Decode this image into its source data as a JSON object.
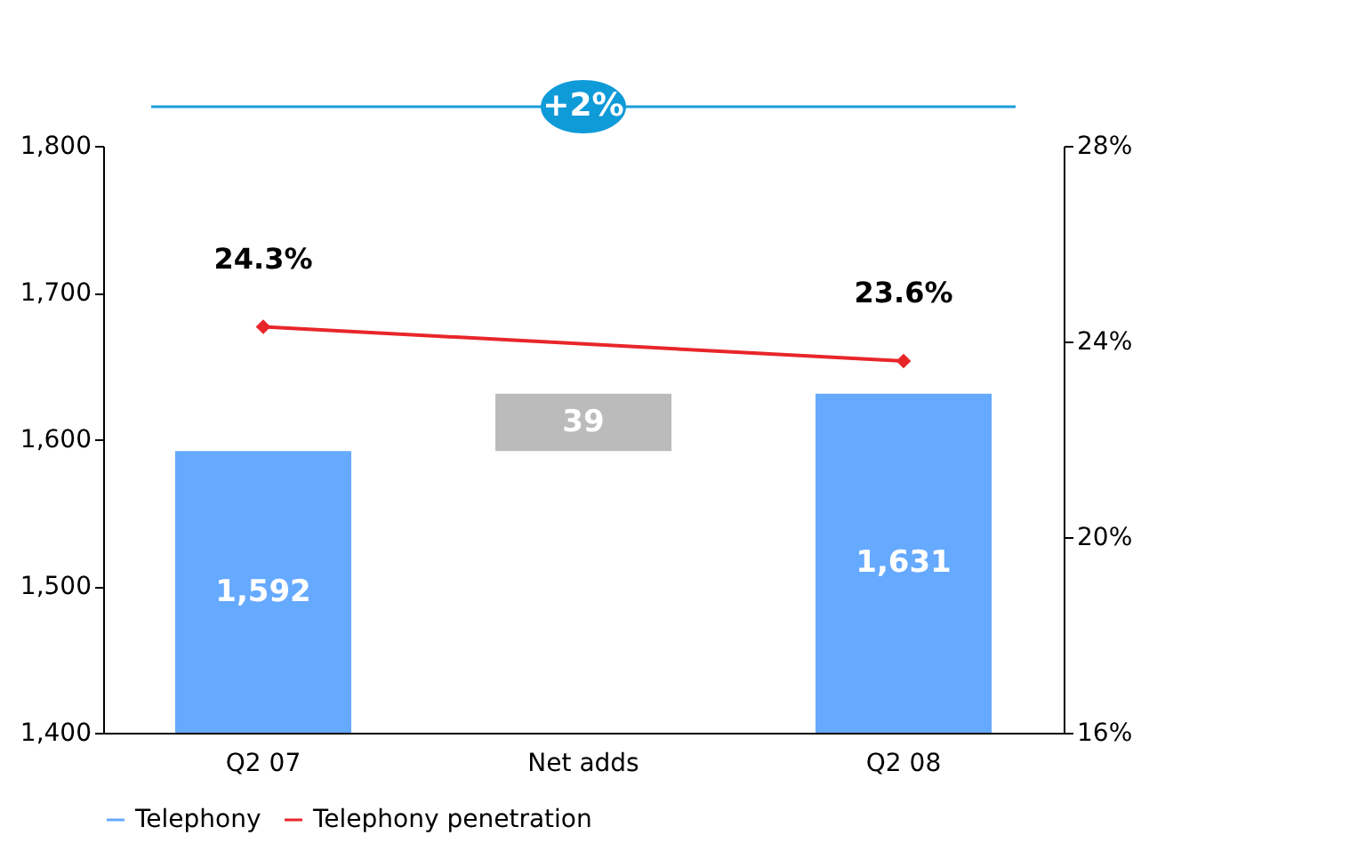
{
  "chart_data": {
    "type": "bar",
    "categories": [
      "Q2 07",
      "Net adds",
      "Q2 08"
    ],
    "series": [
      {
        "name": "Telephony",
        "base": [
          null,
          1592,
          null
        ],
        "color": "#66aaff",
        "colors": [
          "#66aaff",
          "#bbbbbb",
          "#66aaff"
        ],
        "values": [
          1592,
          39,
          1631
        ],
        "value_labels": [
          "1,592",
          "39",
          "1,631"
        ]
      },
      {
        "name": "Telephony penetration",
        "type": "line",
        "axis": "y2",
        "color": "#e8262a",
        "marker": "diamond",
        "values": [
          24.3,
          null,
          23.6
        ],
        "value_labels": [
          "24.3%",
          null,
          "23.6%"
        ]
      }
    ],
    "ylim": [
      1400,
      1800
    ],
    "yticks": [
      {
        "value": 1400,
        "label": "1,400"
      },
      {
        "value": 1500,
        "label": "1,500"
      },
      {
        "value": 1600,
        "label": "1,600"
      },
      {
        "value": 1700,
        "label": "1,700"
      },
      {
        "value": 1800,
        "label": "1,800"
      }
    ],
    "y2lim": [
      16,
      28
    ],
    "y2ticks": [
      {
        "value": 16,
        "label": "16%"
      },
      {
        "value": 20,
        "label": "20%"
      },
      {
        "value": 24,
        "label": "24%"
      },
      {
        "value": 28,
        "label": "28%"
      }
    ],
    "annotations": [
      "+2%"
    ],
    "legend": "bottom",
    "grid": false
  }
}
